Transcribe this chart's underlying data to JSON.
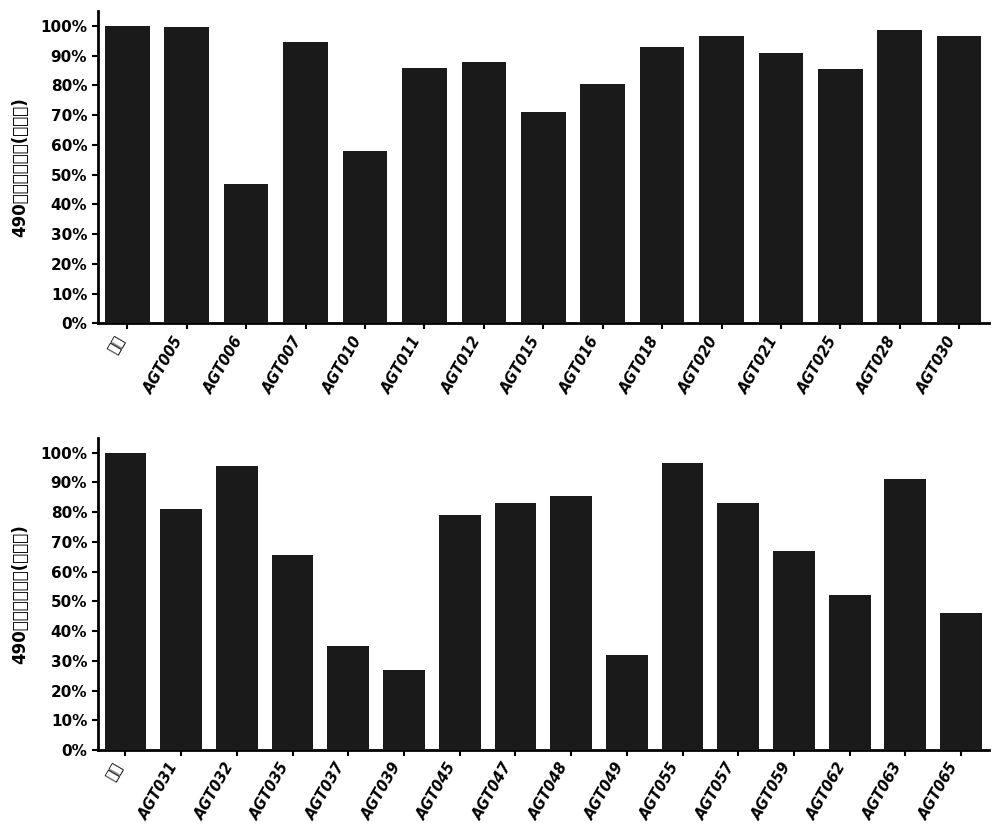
{
  "chart1": {
    "categories": [
      "对照",
      "AGT005",
      "AGT006",
      "AGT007",
      "AGT010",
      "AGT011",
      "AGT012",
      "AGT015",
      "AGT016",
      "AGT018",
      "AGT020",
      "AGT021",
      "AGT025",
      "AGT028",
      "AGT030"
    ],
    "values": [
      1.0,
      0.995,
      0.47,
      0.945,
      0.58,
      0.86,
      0.88,
      0.71,
      0.805,
      0.93,
      0.965,
      0.91,
      0.855,
      0.985,
      0.965
    ],
    "ylabel": "490纳米光吸收值(百分比)"
  },
  "chart2": {
    "categories": [
      "对照",
      "AGT031",
      "AGT032",
      "AGT035",
      "AGT037",
      "AGT039",
      "AGT045",
      "AGT047",
      "AGT048",
      "AGT049",
      "AGT055",
      "AGT057",
      "AGT059",
      "AGT062",
      "AGT063",
      "AGT065"
    ],
    "values": [
      1.0,
      0.81,
      0.955,
      0.655,
      0.35,
      0.27,
      0.79,
      0.83,
      0.855,
      0.32,
      0.965,
      0.83,
      0.67,
      0.52,
      0.91,
      0.46
    ],
    "ylabel": "490纳米光吸收值(百分比)"
  },
  "bar_color": "#1a1a1a",
  "background_color": "#ffffff",
  "yticks": [
    0.0,
    0.1,
    0.2,
    0.3,
    0.4,
    0.5,
    0.6,
    0.7,
    0.8,
    0.9,
    1.0
  ],
  "ylabels": [
    "0%",
    "10%",
    "20%",
    "30%",
    "40%",
    "50%",
    "60%",
    "70%",
    "80%",
    "90%",
    "100%"
  ],
  "ylim": [
    0,
    1.05
  ]
}
